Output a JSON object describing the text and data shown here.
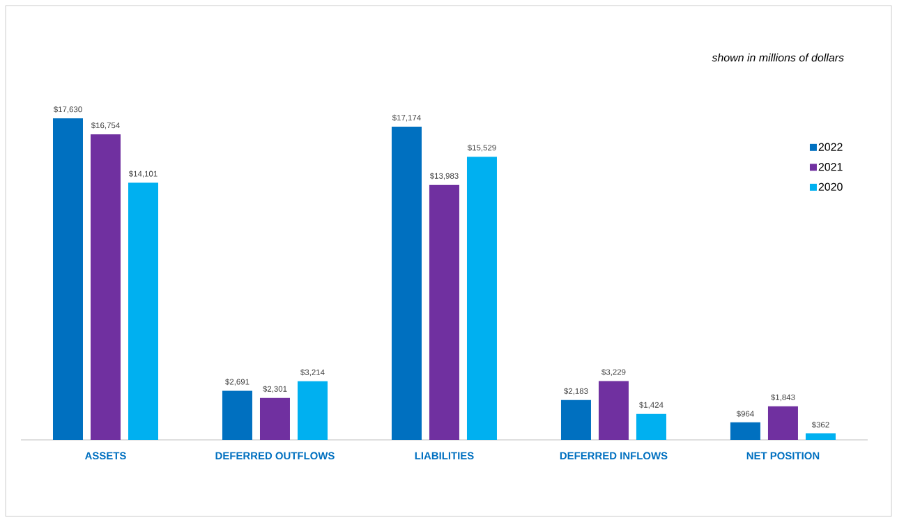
{
  "chart_data": {
    "type": "bar",
    "categories": [
      "ASSETS",
      "DEFERRED OUTFLOWS",
      "LIABILITIES",
      "DEFERRED INFLOWS",
      "NET POSITION"
    ],
    "series": [
      {
        "name": "2022",
        "color": "#0070c0",
        "values": [
          17630,
          2691,
          17174,
          2183,
          964
        ],
        "value_labels": [
          "$17,630",
          "$2,691",
          "$17,174",
          "$2,183",
          "$964"
        ]
      },
      {
        "name": "2021",
        "color": "#7030a0",
        "values": [
          16754,
          2301,
          13983,
          3229,
          1843
        ],
        "value_labels": [
          "$16,754",
          "$2,301",
          "$13,983",
          "$3,229",
          "$1,843"
        ]
      },
      {
        "name": "2020",
        "color": "#00b0f0",
        "values": [
          14101,
          3214,
          15529,
          1424,
          362
        ],
        "value_labels": [
          "$14,101",
          "$3,214",
          "$15,529",
          "$1,424",
          "$362"
        ]
      }
    ],
    "annotations": [
      "*shown in millions of dollars*"
    ],
    "legend": "right"
  }
}
